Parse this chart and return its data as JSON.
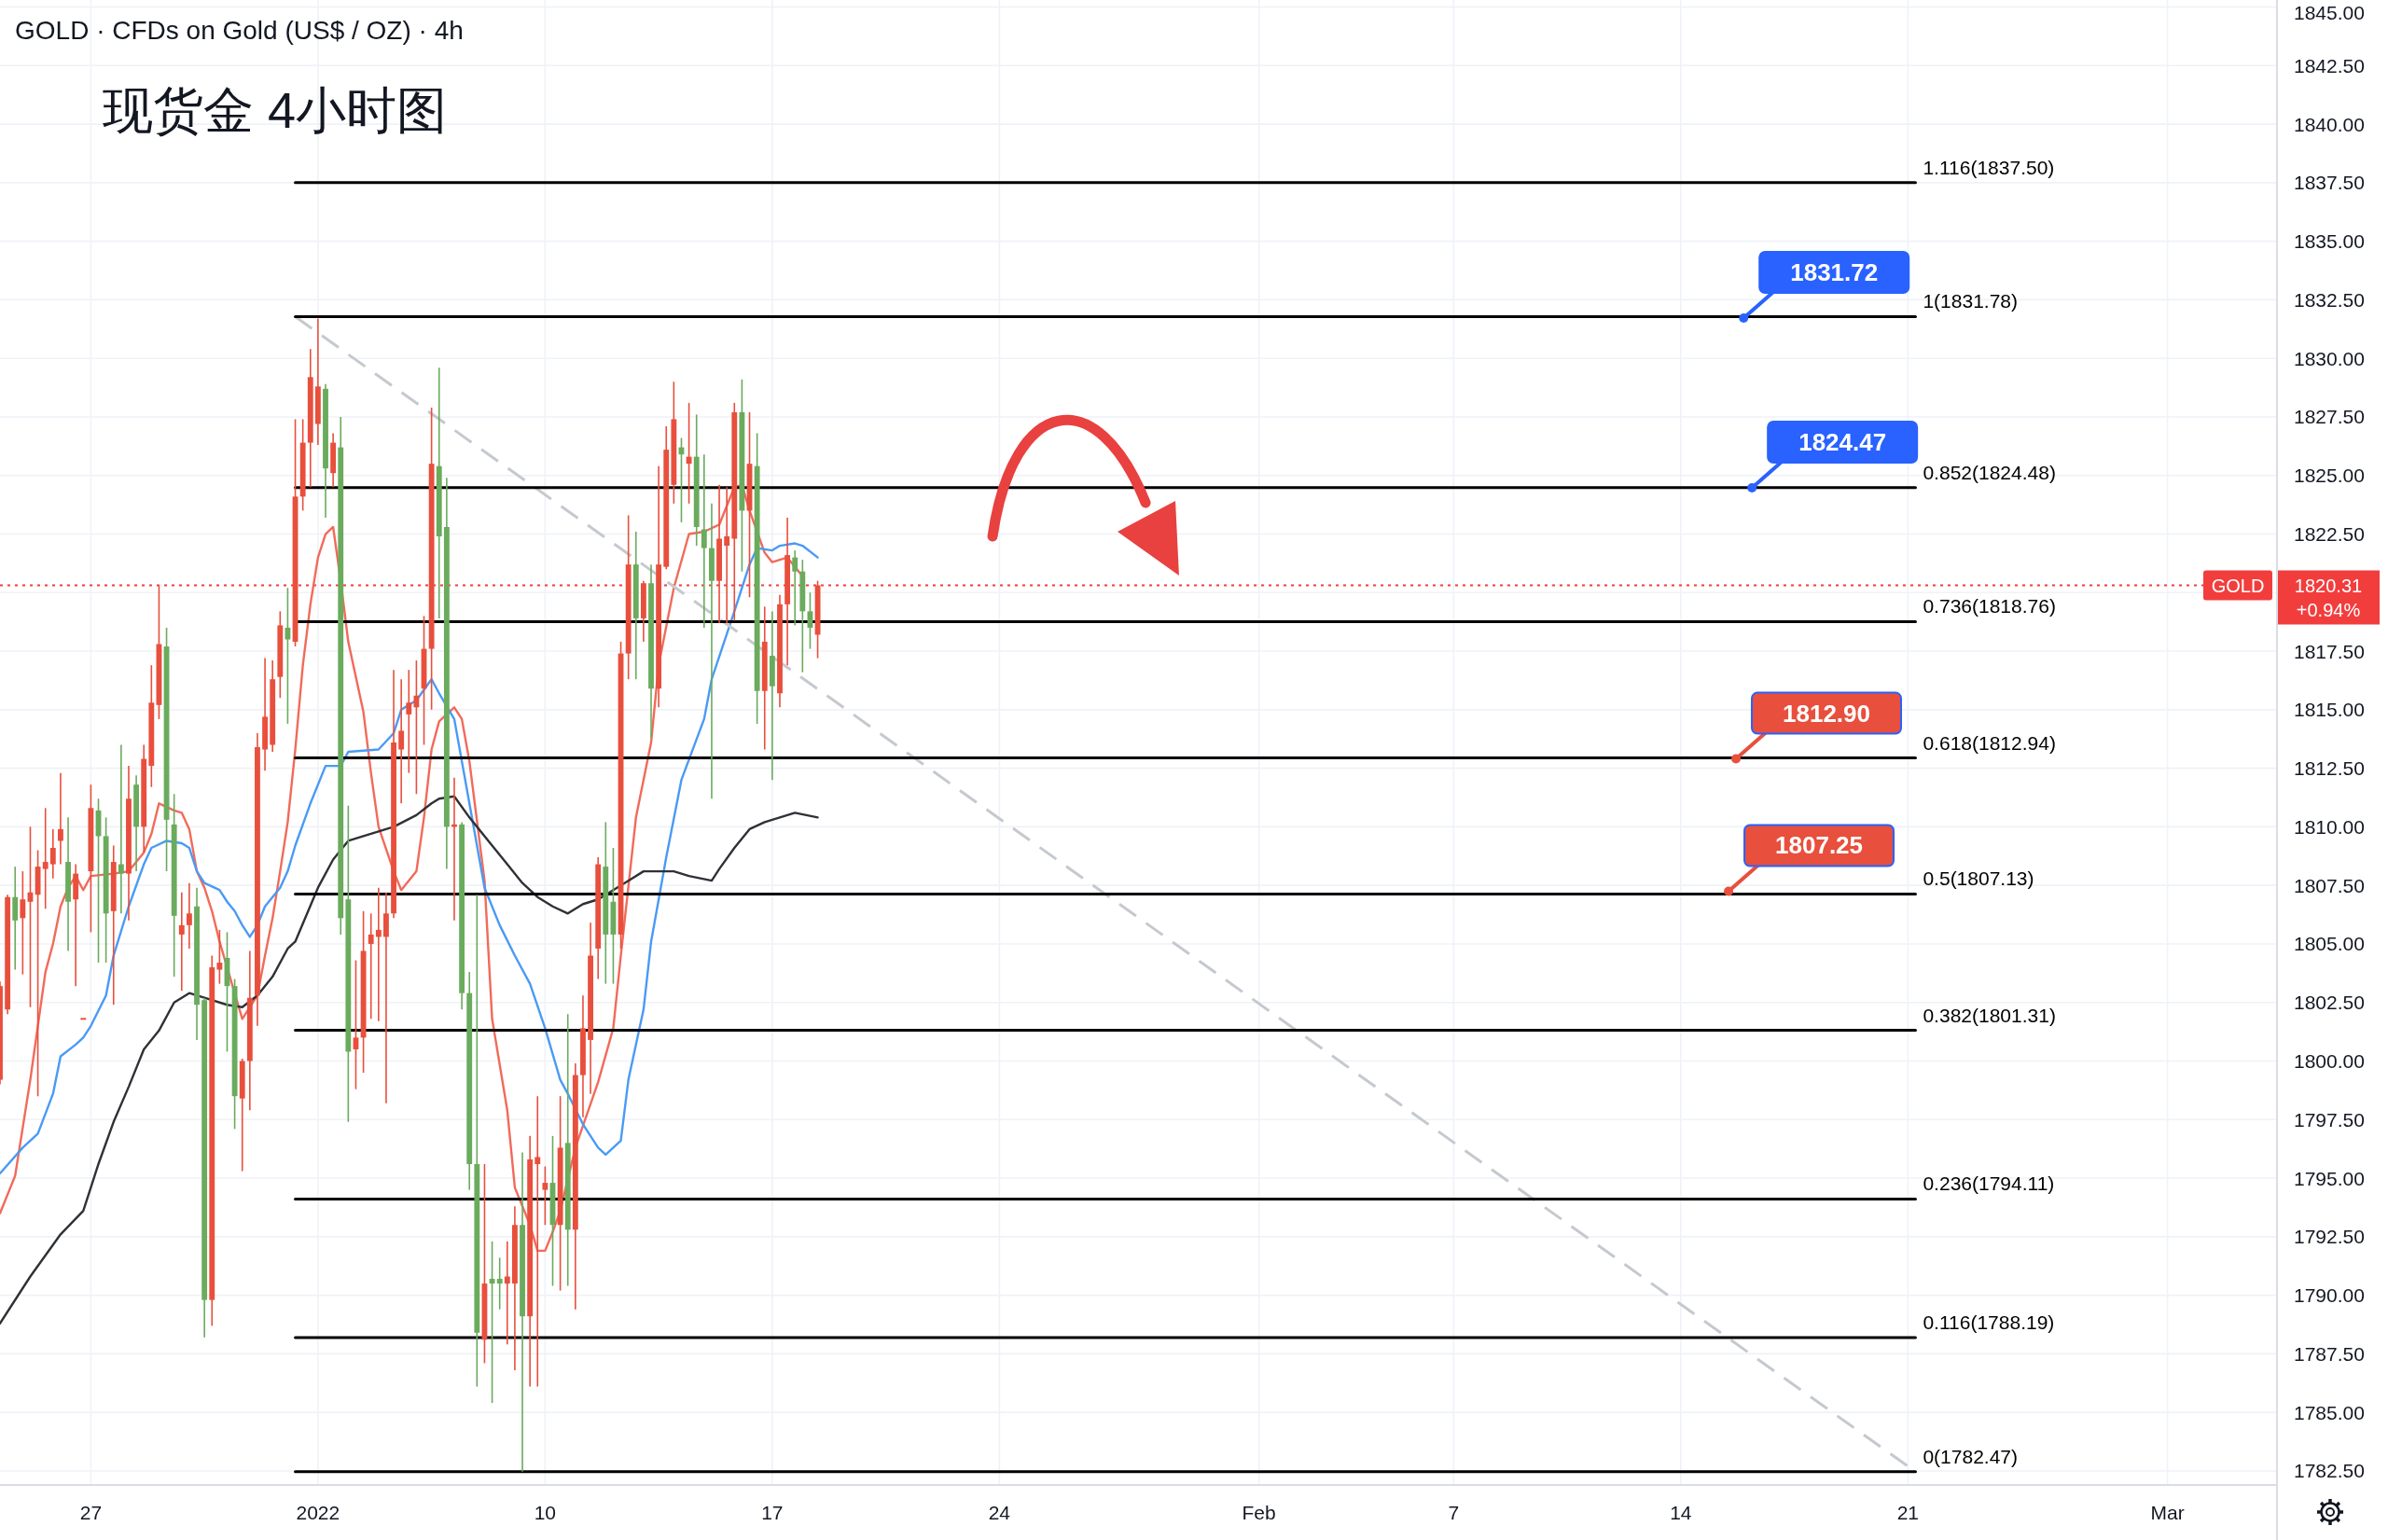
{
  "chart_data": {
    "type": "candlestick",
    "title": "GOLD · CFDs on Gold (US$ / OZ) · 4h",
    "subtitle": "现货金 4小时图",
    "x": [
      "2021-12-24T04:48",
      "2021-12-24T10:24",
      "2021-12-24T16:00",
      "2021-12-24T21:36",
      "2021-12-25T03:12",
      "2021-12-25T08:48",
      "2021-12-25T14:24",
      "2021-12-25T20:00",
      "2021-12-26T01:36",
      "2021-12-26T07:12",
      "2021-12-26T12:48",
      "2021-12-26T18:24",
      "2021-12-27T00:00",
      "2021-12-27T05:36",
      "2021-12-27T11:12",
      "2021-12-27T16:48",
      "2021-12-27T22:24",
      "2021-12-28T04:00",
      "2021-12-28T09:36",
      "2021-12-28T15:12",
      "2021-12-28T20:48",
      "2021-12-29T02:24",
      "2021-12-29T08:00",
      "2021-12-29T13:36",
      "2021-12-29T19:12",
      "2021-12-30T00:48",
      "2021-12-30T06:24",
      "2021-12-30T12:00",
      "2021-12-30T17:36",
      "2021-12-30T23:12",
      "2021-12-31T04:48",
      "2021-12-31T10:24",
      "2021-12-31T16:00",
      "2021-12-31T21:36",
      "2022-01-01T03:12",
      "2022-01-01T08:48",
      "2022-01-01T14:24",
      "2022-01-01T20:00",
      "2022-01-02T01:36",
      "2022-01-02T07:12",
      "2022-01-02T12:48",
      "2022-01-02T18:24",
      "2022-01-03T00:00",
      "2022-01-03T05:36",
      "2022-01-03T11:12",
      "2022-01-03T16:48",
      "2022-01-03T22:24",
      "2022-01-04T04:00",
      "2022-01-04T09:36",
      "2022-01-04T15:12",
      "2022-01-04T20:48",
      "2022-01-05T02:24",
      "2022-01-05T08:00",
      "2022-01-05T13:36",
      "2022-01-05T19:12",
      "2022-01-06T00:48",
      "2022-01-06T06:24",
      "2022-01-06T12:00",
      "2022-01-06T17:36",
      "2022-01-06T23:12",
      "2022-01-07T04:48",
      "2022-01-07T10:24",
      "2022-01-07T16:00",
      "2022-01-07T21:36",
      "2022-01-08T03:12",
      "2022-01-08T08:48",
      "2022-01-08T14:24",
      "2022-01-08T20:00",
      "2022-01-09T01:36",
      "2022-01-09T07:12",
      "2022-01-09T12:48",
      "2022-01-09T18:24",
      "2022-01-10T00:00",
      "2022-01-10T05:36",
      "2022-01-10T11:12",
      "2022-01-10T16:48",
      "2022-01-10T22:24",
      "2022-01-11T04:00",
      "2022-01-11T09:36",
      "2022-01-11T15:12",
      "2022-01-11T20:48",
      "2022-01-12T02:24",
      "2022-01-12T08:00",
      "2022-01-12T13:36",
      "2022-01-12T19:12",
      "2022-01-13T00:48",
      "2022-01-13T06:24",
      "2022-01-13T12:00",
      "2022-01-13T17:36",
      "2022-01-13T23:12",
      "2022-01-14T04:48",
      "2022-01-14T10:24",
      "2022-01-14T16:00",
      "2022-01-14T21:36",
      "2022-01-15T03:12",
      "2022-01-15T08:48",
      "2022-01-15T14:24",
      "2022-01-15T20:00",
      "2022-01-16T01:36",
      "2022-01-16T07:12",
      "2022-01-16T12:48",
      "2022-01-16T18:24",
      "2022-01-17T00:00",
      "2022-01-17T05:36",
      "2022-01-17T11:12",
      "2022-01-17T16:48",
      "2022-01-17T22:24",
      "2022-01-18T04:00",
      "2022-01-18T09:36"
    ],
    "ohlc": [
      [
        1799.2,
        1803.4,
        1799.0,
        1803.2
      ],
      [
        1802.2,
        1807.1,
        1802.0,
        1807.0
      ],
      [
        1807.0,
        1808.3,
        1803.9,
        1806.0
      ],
      [
        1806.1,
        1808.1,
        1803.7,
        1806.9
      ],
      [
        1806.8,
        1810.0,
        1802.3,
        1807.2
      ],
      [
        1807.1,
        1809.0,
        1798.5,
        1808.3
      ],
      [
        1808.2,
        1810.8,
        1806.5,
        1808.5
      ],
      [
        1808.4,
        1809.9,
        1807.8,
        1809.1
      ],
      [
        1809.4,
        1812.3,
        1808.4,
        1809.9
      ],
      [
        1808.5,
        1810.4,
        1804.7,
        1806.8
      ],
      [
        1806.9,
        1808.4,
        1803.2,
        1808.0
      ],
      [
        1801.8,
        1801.8,
        1801.8,
        1801.8
      ],
      [
        1808.1,
        1811.8,
        1805.5,
        1810.8
      ],
      [
        1810.7,
        1811.2,
        1804.2,
        1809.6
      ],
      [
        1809.6,
        1810.4,
        1804.2,
        1806.3
      ],
      [
        1806.4,
        1809.2,
        1802.4,
        1808.5
      ],
      [
        1808.4,
        1813.5,
        1806.3,
        1808.0
      ],
      [
        1808.0,
        1812.6,
        1806.0,
        1811.2
      ],
      [
        1811.8,
        1812.2,
        1808.1,
        1810.0
      ],
      [
        1810.0,
        1813.5,
        1808.9,
        1812.9
      ],
      [
        1812.6,
        1816.9,
        1811.7,
        1815.3
      ],
      [
        1815.2,
        1820.3,
        1814.6,
        1817.8
      ],
      [
        1817.7,
        1818.5,
        1808.1,
        1810.3
      ],
      [
        1810.1,
        1811.4,
        1803.6,
        1806.2
      ],
      [
        1805.4,
        1807.2,
        1803.0,
        1805.8
      ],
      [
        1805.8,
        1807.6,
        1804.8,
        1806.3
      ],
      [
        1806.6,
        1807.4,
        1800.9,
        1802.4
      ],
      [
        1802.6,
        1802.7,
        1788.2,
        1789.8
      ],
      [
        1789.8,
        1804.5,
        1788.7,
        1804.0
      ],
      [
        1803.9,
        1805.6,
        1803.3,
        1804.2
      ],
      [
        1804.4,
        1805.5,
        1800.4,
        1803.2
      ],
      [
        1803.2,
        1803.5,
        1797.1,
        1798.5
      ],
      [
        1798.4,
        1800.1,
        1795.3,
        1800.0
      ],
      [
        1800.0,
        1804.7,
        1797.9,
        1802.7
      ],
      [
        1802.8,
        1814.0,
        1801.5,
        1813.4
      ],
      [
        1813.3,
        1817.2,
        1812.4,
        1814.7
      ],
      [
        1813.5,
        1817.1,
        1813.2,
        1816.3
      ],
      [
        1816.4,
        1819.2,
        1815.5,
        1818.6
      ],
      [
        1818.5,
        1820.2,
        1814.4,
        1818.0
      ],
      [
        1817.9,
        1827.4,
        1817.7,
        1824.1
      ],
      [
        1824.1,
        1827.4,
        1823.5,
        1826.4
      ],
      [
        1826.4,
        1830.4,
        1824.5,
        1829.2
      ],
      [
        1827.2,
        1831.7,
        1826.3,
        1828.8
      ],
      [
        1828.7,
        1828.9,
        1823.2,
        1825.3
      ],
      [
        1825.1,
        1826.8,
        1824.5,
        1826.4
      ],
      [
        1826.2,
        1827.5,
        1805.4,
        1806.1
      ],
      [
        1806.9,
        1810.9,
        1797.4,
        1800.4
      ],
      [
        1800.5,
        1804.3,
        1798.8,
        1801.0
      ],
      [
        1801.0,
        1806.4,
        1799.5,
        1804.7
      ],
      [
        1805.0,
        1806.3,
        1801.8,
        1805.4
      ],
      [
        1805.3,
        1807.4,
        1801.7,
        1805.6
      ],
      [
        1805.3,
        1807.2,
        1798.2,
        1806.3
      ],
      [
        1806.3,
        1816.7,
        1806.1,
        1813.6
      ],
      [
        1813.3,
        1816.3,
        1811.0,
        1814.1
      ],
      [
        1814.8,
        1816.7,
        1812.3,
        1815.3
      ],
      [
        1815.1,
        1817.1,
        1811.4,
        1815.6
      ],
      [
        1815.9,
        1819.0,
        1813.5,
        1817.6
      ],
      [
        1817.6,
        1827.9,
        1815.0,
        1825.5
      ],
      [
        1825.4,
        1829.6,
        1818.9,
        1822.4
      ],
      [
        1822.8,
        1824.9,
        1808.2,
        1810.0
      ],
      [
        1810.0,
        1812.1,
        1806.0,
        1810.1
      ],
      [
        1810.1,
        1810.2,
        1802.2,
        1802.9
      ],
      [
        1802.9,
        1803.8,
        1794.5,
        1795.6
      ],
      [
        1795.6,
        1807.1,
        1786.1,
        1788.4
      ],
      [
        1788.1,
        1795.6,
        1787.1,
        1790.5
      ],
      [
        1790.7,
        1792.3,
        1785.4,
        1790.5
      ],
      [
        1790.7,
        1791.6,
        1789.4,
        1790.5
      ],
      [
        1790.5,
        1792.3,
        1787.9,
        1790.8
      ],
      [
        1790.5,
        1793.8,
        1786.8,
        1793.0
      ],
      [
        1793.0,
        1796.1,
        1782.47,
        1789.1
      ],
      [
        1789.1,
        1796.8,
        1786.1,
        1795.8
      ],
      [
        1795.6,
        1798.5,
        1786.1,
        1795.9
      ],
      [
        1794.5,
        1795.5,
        1793.0,
        1794.8
      ],
      [
        1794.8,
        1796.8,
        1790.4,
        1793.0
      ],
      [
        1793.0,
        1798.5,
        1790.2,
        1796.3
      ],
      [
        1796.5,
        1802.0,
        1790.4,
        1792.8
      ],
      [
        1792.8,
        1799.9,
        1789.4,
        1799.4
      ],
      [
        1799.4,
        1802.8,
        1797.6,
        1801.4
      ],
      [
        1800.9,
        1805.9,
        1798.6,
        1804.5
      ],
      [
        1804.8,
        1808.7,
        1803.5,
        1808.4
      ],
      [
        1808.3,
        1810.2,
        1803.3,
        1805.4
      ],
      [
        1806.8,
        1809.1,
        1803.3,
        1805.4
      ],
      [
        1805.4,
        1817.9,
        1804.8,
        1817.4
      ],
      [
        1817.4,
        1823.3,
        1816.3,
        1821.2
      ],
      [
        1821.2,
        1822.6,
        1816.3,
        1818.9
      ],
      [
        1818.9,
        1820.5,
        1817.9,
        1820.4
      ],
      [
        1820.4,
        1821.2,
        1813.8,
        1815.9
      ],
      [
        1815.9,
        1825.4,
        1815.1,
        1821.2
      ],
      [
        1821.1,
        1827.1,
        1821.0,
        1826.1
      ],
      [
        1824.6,
        1829.0,
        1823.8,
        1827.4
      ],
      [
        1826.2,
        1826.6,
        1823.0,
        1825.9
      ],
      [
        1825.5,
        1828.1,
        1823.8,
        1825.8
      ],
      [
        1825.8,
        1827.6,
        1822.0,
        1822.8
      ],
      [
        1822.7,
        1825.9,
        1818.5,
        1821.9
      ],
      [
        1821.9,
        1823.8,
        1811.2,
        1820.5
      ],
      [
        1820.5,
        1824.6,
        1818.7,
        1822.3
      ],
      [
        1822.0,
        1824.5,
        1818.7,
        1822.4
      ],
      [
        1822.3,
        1828.1,
        1818.8,
        1827.7
      ],
      [
        1827.7,
        1829.1,
        1820.9,
        1823.5
      ],
      [
        1823.5,
        1827.7,
        1819.8,
        1825.5
      ],
      [
        1825.4,
        1826.8,
        1814.4,
        1815.8
      ],
      [
        1815.8,
        1819.4,
        1813.3,
        1817.9
      ],
      [
        1817.3,
        1819.2,
        1812.0,
        1816.0
      ],
      [
        1815.7,
        1819.9,
        1815.1,
        1819.5
      ],
      [
        1819.5,
        1823.2,
        1816.9,
        1821.6
      ],
      [
        1821.5,
        1821.8,
        1818.6,
        1820.9
      ],
      [
        1820.9,
        1821.4,
        1816.6,
        1819.2
      ],
      [
        1819.2,
        1820.0,
        1817.6,
        1818.5
      ],
      [
        1818.2,
        1820.5,
        1817.2,
        1820.31
      ]
    ],
    "colors": [
      "#e84f3d",
      "#e84f3d",
      "#6aab5d",
      "#e84f3d",
      "#e84f3d",
      "#e84f3d",
      "#e84f3d",
      "#e84f3d",
      "#e84f3d",
      "#6aab5d",
      "#e84f3d",
      "#e84f3d",
      "#e84f3d",
      "#6aab5d",
      "#6aab5d",
      "#e84f3d",
      "#6aab5d",
      "#e84f3d",
      "#6aab5d",
      "#e84f3d",
      "#e84f3d",
      "#e84f3d",
      "#6aab5d",
      "#6aab5d",
      "#e84f3d",
      "#e84f3d",
      "#6aab5d",
      "#6aab5d",
      "#e84f3d",
      "#e84f3d",
      "#6aab5d",
      "#6aab5d",
      "#e84f3d",
      "#e84f3d",
      "#e84f3d",
      "#e84f3d",
      "#e84f3d",
      "#e84f3d",
      "#6aab5d",
      "#e84f3d",
      "#e84f3d",
      "#e84f3d",
      "#e84f3d",
      "#6aab5d",
      "#e84f3d",
      "#6aab5d",
      "#6aab5d",
      "#e84f3d",
      "#e84f3d",
      "#e84f3d",
      "#e84f3d",
      "#e84f3d",
      "#e84f3d",
      "#e84f3d",
      "#e84f3d",
      "#e84f3d",
      "#e84f3d",
      "#e84f3d",
      "#6aab5d",
      "#6aab5d",
      "#e84f3d",
      "#6aab5d",
      "#6aab5d",
      "#6aab5d",
      "#e84f3d",
      "#6aab5d",
      "#6aab5d",
      "#e84f3d",
      "#e84f3d",
      "#6aab5d",
      "#e84f3d",
      "#e84f3d",
      "#e84f3d",
      "#6aab5d",
      "#e84f3d",
      "#6aab5d",
      "#e84f3d",
      "#e84f3d",
      "#e84f3d",
      "#e84f3d",
      "#6aab5d",
      "#6aab5d",
      "#e84f3d",
      "#e84f3d",
      "#6aab5d",
      "#e84f3d",
      "#6aab5d",
      "#e84f3d",
      "#e84f3d",
      "#e84f3d",
      "#6aab5d",
      "#e84f3d",
      "#6aab5d",
      "#6aab5d",
      "#6aab5d",
      "#e84f3d",
      "#e84f3d",
      "#e84f3d",
      "#6aab5d",
      "#e84f3d",
      "#6aab5d",
      "#e84f3d",
      "#6aab5d",
      "#e84f3d",
      "#e84f3d",
      "#6aab5d",
      "#6aab5d",
      "#6aab5d",
      "#e84f3d"
    ],
    "series": [
      {
        "type": "line",
        "color": "#f26a5a",
        "x": [
          "2021-12-24T04:48",
          "2021-12-24T16:00",
          "2021-12-25T03:12",
          "2021-12-25T14:24",
          "2021-12-25T20:00",
          "2021-12-26T01:36",
          "2021-12-26T07:12",
          "2021-12-26T12:48",
          "2021-12-26T18:24",
          "2021-12-27T00:00",
          "2021-12-27T16:48",
          "2021-12-28T04:00",
          "2021-12-28T15:12",
          "2021-12-28T20:48",
          "2021-12-29T02:24",
          "2021-12-29T13:36",
          "2021-12-29T19:12",
          "2021-12-30T00:48",
          "2021-12-30T06:24",
          "2021-12-30T12:00",
          "2021-12-30T17:36",
          "2021-12-30T23:12",
          "2021-12-31T16:00",
          "2022-01-01T03:12",
          "2022-01-01T08:48",
          "2022-01-01T14:24",
          "2022-01-01T20:00",
          "2022-01-02T01:36",
          "2022-01-02T07:12",
          "2022-01-02T12:48",
          "2022-01-02T18:24",
          "2022-01-03T00:00",
          "2022-01-03T05:36",
          "2022-01-03T11:12",
          "2022-01-03T16:48",
          "2022-01-03T22:24",
          "2022-01-04T09:36",
          "2022-01-04T15:12",
          "2022-01-04T20:48",
          "2022-01-05T08:00",
          "2022-01-05T13:36",
          "2022-01-06T00:48",
          "2022-01-06T06:24",
          "2022-01-06T12:00",
          "2022-01-06T17:36",
          "2022-01-07T04:48",
          "2022-01-07T10:24",
          "2022-01-07T16:00",
          "2022-01-08T03:12",
          "2022-01-08T08:48",
          "2022-01-08T20:00",
          "2022-01-09T01:36",
          "2022-01-09T12:48",
          "2022-01-09T18:24",
          "2022-01-10T00:00",
          "2022-01-10T05:36",
          "2022-01-10T11:12",
          "2022-01-10T22:24",
          "2022-01-11T15:12",
          "2022-01-12T02:24",
          "2022-01-12T08:00",
          "2022-01-12T19:12",
          "2022-01-13T06:24",
          "2022-01-13T12:00",
          "2022-01-13T23:12",
          "2022-01-14T10:24",
          "2022-01-14T21:36",
          "2022-01-15T08:48",
          "2022-01-15T20:00",
          "2022-01-16T01:36",
          "2022-01-16T07:12",
          "2022-01-16T18:24",
          "2022-01-17T00:00",
          "2022-01-17T11:12",
          "2022-01-17T22:24"
        ],
        "values": [
          1793.5,
          1795.1,
          1799.2,
          1803.8,
          1805.0,
          1806.6,
          1807.4,
          1807.9,
          1807.3,
          1807.9,
          1808.0,
          1808.1,
          1808.9,
          1809.7,
          1811.0,
          1810.7,
          1810.6,
          1809.9,
          1808.1,
          1807.4,
          1806.4,
          1805.1,
          1801.8,
          1802.8,
          1804.5,
          1806.1,
          1808.1,
          1810.2,
          1813.3,
          1816.9,
          1819.5,
          1821.5,
          1822.5,
          1822.8,
          1820.5,
          1817.9,
          1814.9,
          1812.3,
          1810.0,
          1808.1,
          1807.3,
          1808.1,
          1810.4,
          1813.3,
          1814.5,
          1815.1,
          1814.6,
          1812.8,
          1807.7,
          1801.8,
          1797.9,
          1794.6,
          1793.0,
          1791.9,
          1791.9,
          1792.7,
          1793.6,
          1796.3,
          1799.1,
          1801.4,
          1804.5,
          1810.4,
          1813.6,
          1816.9,
          1820.2,
          1822.5,
          1822.6,
          1822.9,
          1824.5,
          1824.6,
          1823.5,
          1821.7,
          1821.3,
          1821.5,
          1820.7
        ]
      },
      {
        "type": "line",
        "color": "#4a9af5",
        "x": [
          "2021-12-24T04:48",
          "2021-12-24T21:36",
          "2021-12-25T08:48",
          "2021-12-25T20:00",
          "2021-12-26T01:36",
          "2021-12-26T12:48",
          "2021-12-26T18:24",
          "2021-12-27T00:00",
          "2021-12-27T11:12",
          "2021-12-27T16:48",
          "2021-12-28T04:00",
          "2021-12-28T15:12",
          "2021-12-28T20:48",
          "2021-12-29T08:00",
          "2021-12-29T19:12",
          "2021-12-30T00:48",
          "2021-12-30T06:24",
          "2021-12-30T12:00",
          "2021-12-30T23:12",
          "2021-12-31T04:48",
          "2021-12-31T10:24",
          "2021-12-31T16:00",
          "2021-12-31T21:36",
          "2022-01-01T03:12",
          "2022-01-01T08:48",
          "2022-01-01T20:00",
          "2022-01-02T01:36",
          "2022-01-02T07:12",
          "2022-01-02T18:24",
          "2022-01-03T05:36",
          "2022-01-03T16:48",
          "2022-01-03T22:24",
          "2022-01-04T20:48",
          "2022-01-05T08:00",
          "2022-01-05T13:36",
          "2022-01-06T00:48",
          "2022-01-06T12:00",
          "2022-01-06T17:36",
          "2022-01-07T04:48",
          "2022-01-07T16:00",
          "2022-01-08T03:12",
          "2022-01-08T14:24",
          "2022-01-09T01:36",
          "2022-01-09T12:48",
          "2022-01-10T00:00",
          "2022-01-10T11:12",
          "2022-01-10T16:48",
          "2022-01-11T04:00",
          "2022-01-11T15:12",
          "2022-01-11T20:48",
          "2022-01-12T08:00",
          "2022-01-12T13:36",
          "2022-01-13T00:48",
          "2022-01-13T06:24",
          "2022-01-13T17:36",
          "2022-01-14T04:48",
          "2022-01-14T21:36",
          "2022-01-15T03:12",
          "2022-01-15T20:00",
          "2022-01-16T07:12",
          "2022-01-16T12:48",
          "2022-01-17T00:00",
          "2022-01-17T05:36",
          "2022-01-17T16:48",
          "2022-01-17T22:24",
          "2022-01-18T09:36"
        ],
        "values": [
          1795.2,
          1796.3,
          1796.9,
          1798.6,
          1800.2,
          1800.7,
          1801.0,
          1801.5,
          1802.8,
          1804.5,
          1806.6,
          1808.4,
          1809.1,
          1809.4,
          1809.3,
          1809.1,
          1808.1,
          1807.6,
          1807.3,
          1806.8,
          1806.4,
          1805.8,
          1805.3,
          1805.8,
          1806.6,
          1807.4,
          1808.1,
          1809.2,
          1811.0,
          1812.6,
          1812.6,
          1813.2,
          1813.3,
          1814.0,
          1815.0,
          1815.4,
          1816.3,
          1815.7,
          1814.6,
          1811.0,
          1807.4,
          1805.8,
          1804.5,
          1803.3,
          1801.4,
          1799.2,
          1798.6,
          1797.3,
          1796.3,
          1796.0,
          1796.6,
          1799.2,
          1802.2,
          1805.1,
          1808.7,
          1812.0,
          1814.6,
          1816.3,
          1819.2,
          1821.2,
          1821.9,
          1821.8,
          1822.0,
          1822.1,
          1822.0,
          1821.5
        ]
      },
      {
        "type": "line",
        "color": "#2f3136",
        "x": [
          "2021-12-24T04:48",
          "2021-12-25T03:12",
          "2021-12-26T01:36",
          "2021-12-26T18:24",
          "2021-12-27T05:36",
          "2021-12-27T16:48",
          "2021-12-28T04:00",
          "2021-12-28T15:12",
          "2021-12-29T02:24",
          "2021-12-29T13:36",
          "2021-12-30T00:48",
          "2021-12-30T12:00",
          "2021-12-31T04:48",
          "2021-12-31T16:00",
          "2022-01-01T03:12",
          "2022-01-01T14:24",
          "2022-01-02T01:36",
          "2022-01-02T07:12",
          "2022-01-03T00:00",
          "2022-01-03T11:12",
          "2022-01-03T22:24",
          "2022-01-04T20:48",
          "2022-01-05T08:00",
          "2022-01-06T00:48",
          "2022-01-06T12:00",
          "2022-01-06T17:36",
          "2022-01-07T04:48",
          "2022-01-07T16:00",
          "2022-01-08T08:48",
          "2022-01-08T20:00",
          "2022-01-09T07:12",
          "2022-01-09T18:24",
          "2022-01-10T05:36",
          "2022-01-10T16:48",
          "2022-01-11T04:00",
          "2022-01-11T15:12",
          "2022-01-12T02:24",
          "2022-01-12T13:36",
          "2022-01-13T00:48",
          "2022-01-13T23:12",
          "2022-01-14T10:24",
          "2022-01-15T03:12",
          "2022-01-15T08:48",
          "2022-01-15T20:00",
          "2022-01-16T07:12",
          "2022-01-16T18:24",
          "2022-01-17T05:36",
          "2022-01-17T16:48",
          "2022-01-18T09:36"
        ],
        "values": [
          1788.8,
          1790.8,
          1792.6,
          1793.6,
          1795.6,
          1797.4,
          1798.9,
          1800.5,
          1801.3,
          1802.5,
          1802.9,
          1802.7,
          1802.4,
          1802.3,
          1802.8,
          1803.6,
          1804.8,
          1805.1,
          1807.4,
          1808.6,
          1809.4,
          1809.8,
          1810.0,
          1810.5,
          1811.0,
          1811.2,
          1811.3,
          1810.4,
          1809.2,
          1808.4,
          1807.6,
          1807.0,
          1806.6,
          1806.3,
          1806.7,
          1806.9,
          1807.3,
          1807.7,
          1808.1,
          1808.1,
          1807.9,
          1807.7,
          1808.2,
          1809.1,
          1809.9,
          1810.2,
          1810.4,
          1810.6,
          1810.4
        ]
      },
      {
        "type": "line",
        "color": "#c5c9cf",
        "line_style": "dashed",
        "x": [
          "2022-01-02T07:12",
          "2022-02-21T05:36"
        ],
        "values": [
          1831.78,
          1782.47
        ]
      },
      {
        "type": "line",
        "name": "1.116(1837.50)",
        "color": "#000000",
        "x": [
          "2022-01-02T07:12",
          "2022-02-21T05:36"
        ],
        "values": [
          1837.5,
          1837.5
        ]
      },
      {
        "type": "line",
        "name": "1(1831.78)",
        "color": "#000000",
        "x": [
          "2022-01-02T07:12",
          "2022-02-21T05:36"
        ],
        "values": [
          1831.78,
          1831.78
        ]
      },
      {
        "type": "line",
        "name": "0.852(1824.48)",
        "color": "#000000",
        "x": [
          "2022-01-02T07:12",
          "2022-02-21T05:36"
        ],
        "values": [
          1824.48,
          1824.48
        ]
      },
      {
        "type": "line",
        "name": "0.736(1818.76)",
        "color": "#000000",
        "x": [
          "2022-01-02T07:12",
          "2022-02-21T05:36"
        ],
        "values": [
          1818.76,
          1818.76
        ]
      },
      {
        "type": "line",
        "name": "0.618(1812.94)",
        "color": "#000000",
        "x": [
          "2022-01-02T07:12",
          "2022-02-21T05:36"
        ],
        "values": [
          1812.94,
          1812.94
        ]
      },
      {
        "type": "line",
        "name": "0.5(1807.13)",
        "color": "#000000",
        "x": [
          "2022-01-02T07:12",
          "2022-02-21T05:36"
        ],
        "values": [
          1807.13,
          1807.13
        ]
      },
      {
        "type": "line",
        "name": "0.382(1801.31)",
        "color": "#000000",
        "x": [
          "2022-01-02T07:12",
          "2022-02-21T05:36"
        ],
        "values": [
          1801.31,
          1801.31
        ]
      },
      {
        "type": "line",
        "name": "0.236(1794.11)",
        "color": "#000000",
        "x": [
          "2022-01-02T07:12",
          "2022-02-21T05:36"
        ],
        "values": [
          1794.11,
          1794.11
        ]
      },
      {
        "type": "line",
        "name": "0.116(1788.19)",
        "color": "#000000",
        "x": [
          "2022-01-02T07:12",
          "2022-02-21T05:36"
        ],
        "values": [
          1788.19,
          1788.19
        ]
      },
      {
        "type": "line",
        "name": "0(1782.47)",
        "color": "#000000",
        "x": [
          "2022-01-02T07:12",
          "2022-02-21T05:36"
        ],
        "values": [
          1782.47,
          1782.47
        ]
      }
    ],
    "ref_lines": [
      {
        "axis": "y",
        "value": 1820.31,
        "label": "1820.31",
        "color": "#f23d3d",
        "line_style": "dotted"
      }
    ],
    "annotations": [
      {
        "text": "1831.72",
        "x": "2022-02-15T22:30",
        "y": 1831.72
      },
      {
        "text": "1824.47",
        "x": "2022-02-16T04:40",
        "y": 1824.47
      },
      {
        "text": "1812.90",
        "x": "2022-02-15T16:50",
        "y": 1812.9
      },
      {
        "text": "1807.25",
        "x": "2022-02-15T11:20",
        "y": 1807.25
      },
      "GOLD",
      "+0.94%"
    ],
    "xlim": [
      "2021-12-24T04:48",
      "2022-03-04T09:00"
    ],
    "xticks": [
      {
        "value": "2021-12-27",
        "label": "27"
      },
      {
        "value": "2022-01-03",
        "label": "2022"
      },
      {
        "value": "2022-01-10",
        "label": "10"
      },
      {
        "value": "2022-01-17",
        "label": "17"
      },
      {
        "value": "2022-01-24",
        "label": "24"
      },
      {
        "value": "2022-02-01",
        "label": "Feb"
      },
      {
        "value": "2022-02-07",
        "label": "7"
      },
      {
        "value": "2022-02-14",
        "label": "14"
      },
      {
        "value": "2022-02-21",
        "label": "21"
      },
      {
        "value": "2022-03-01",
        "label": "Mar"
      }
    ],
    "ylim": [
      1781.9,
      1845.3
    ],
    "yticks": [
      {
        "value": 1782.5,
        "label": "1782.50"
      },
      {
        "value": 1785,
        "label": "1785.00"
      },
      {
        "value": 1787.5,
        "label": "1787.50"
      },
      {
        "value": 1790,
        "label": "1790.00"
      },
      {
        "value": 1792.5,
        "label": "1792.50"
      },
      {
        "value": 1795,
        "label": "1795.00"
      },
      {
        "value": 1797.5,
        "label": "1797.50"
      },
      {
        "value": 1800,
        "label": "1800.00"
      },
      {
        "value": 1802.5,
        "label": "1802.50"
      },
      {
        "value": 1805,
        "label": "1805.00"
      },
      {
        "value": 1807.5,
        "label": "1807.50"
      },
      {
        "value": 1810,
        "label": "1810.00"
      },
      {
        "value": 1812.5,
        "label": "1812.50"
      },
      {
        "value": 1815,
        "label": "1815.00"
      },
      {
        "value": 1817.5,
        "label": "1817.50"
      },
      {
        "value": 1820,
        "label": null
      },
      {
        "value": 1822.5,
        "label": "1822.50"
      },
      {
        "value": 1825,
        "label": "1825.00"
      },
      {
        "value": 1827.5,
        "label": "1827.50"
      },
      {
        "value": 1830,
        "label": "1830.00"
      },
      {
        "value": 1832.5,
        "label": "1832.50"
      },
      {
        "value": 1835,
        "label": "1835.00"
      },
      {
        "value": 1837.5,
        "label": "1837.50"
      },
      {
        "value": 1840,
        "label": "1840.00"
      },
      {
        "value": 1842.5,
        "label": "1842.50"
      },
      {
        "value": 1845,
        "label": "1845.00"
      }
    ],
    "grid": true
  }
}
